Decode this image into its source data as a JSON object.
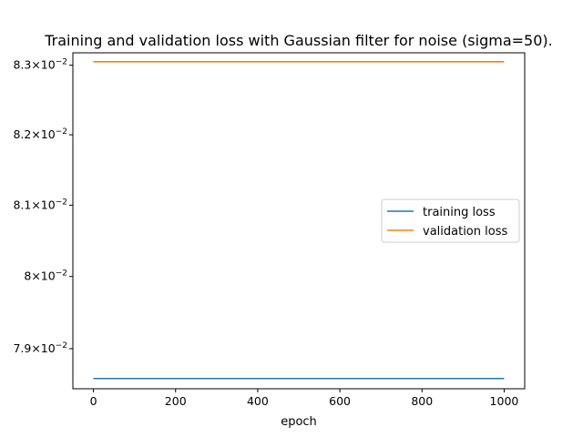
{
  "chart_data": {
    "type": "line",
    "title": "Training and validation loss with Gaussian filter for noise (sigma=50).",
    "xlabel": "epoch",
    "ylabel": "",
    "xlim": [
      -50,
      1050
    ],
    "ylim": [
      0.07845,
      0.08318
    ],
    "yscale": "log",
    "grid": false,
    "legend_position": "center-right",
    "x_ticks": [
      0,
      200,
      400,
      600,
      800,
      1000
    ],
    "x_tick_labels": [
      "0",
      "200",
      "400",
      "600",
      "800",
      "1000"
    ],
    "y_ticks": [
      0.079,
      0.08,
      0.081,
      0.082,
      0.083
    ],
    "y_tick_labels": [
      {
        "mantissa": "7.9",
        "exponent": "−2"
      },
      {
        "mantissa": "8",
        "exponent": "−2"
      },
      {
        "mantissa": "8.1",
        "exponent": "−2"
      },
      {
        "mantissa": "8.2",
        "exponent": "−2"
      },
      {
        "mantissa": "8.3",
        "exponent": "−2"
      }
    ],
    "series": [
      {
        "name": "training loss",
        "color": "#1f77b4",
        "x": [
          0,
          1000
        ],
        "y": [
          0.07859,
          0.07859
        ]
      },
      {
        "name": "validation loss",
        "color": "#ff7f0e",
        "x": [
          0,
          1000
        ],
        "y": [
          0.08305,
          0.08305
        ]
      }
    ]
  }
}
